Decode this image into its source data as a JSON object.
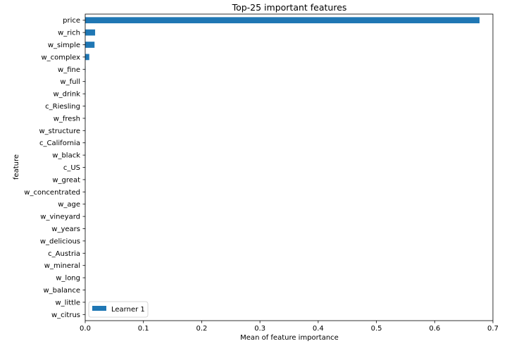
{
  "chart_data": {
    "type": "bar",
    "orientation": "horizontal",
    "title": "Top-25 important features",
    "xlabel": "Mean of feature importance",
    "ylabel": "feature",
    "categories": [
      "price",
      "w_rich",
      "w_simple",
      "w_complex",
      "w_fine",
      "w_full",
      "w_drink",
      "c_Riesling",
      "w_fresh",
      "w_structure",
      "c_California",
      "w_black",
      "c_US",
      "w_great",
      "w_concentrated",
      "w_age",
      "w_vineyard",
      "w_years",
      "w_delicious",
      "c_Austria",
      "w_mineral",
      "w_long",
      "w_balance",
      "w_little",
      "w_citrus"
    ],
    "series": [
      {
        "name": "Learner 1",
        "color": "#1f77b4",
        "values": [
          0.677,
          0.017,
          0.016,
          0.007,
          0.0005,
          0.0004,
          0.0004,
          0.0003,
          0.0003,
          0.0003,
          0.0003,
          0.0003,
          0.0002,
          0.0002,
          0.0002,
          0.0002,
          0.0002,
          0.0002,
          0.0002,
          0.0001,
          0.0001,
          0.0001,
          0.0001,
          0.0001,
          0.0001
        ]
      }
    ],
    "xlim": [
      0,
      0.7
    ],
    "xticks": [
      0.0,
      0.1,
      0.2,
      0.3,
      0.4,
      0.5,
      0.6,
      0.7
    ],
    "xtick_labels": [
      "0.0",
      "0.1",
      "0.2",
      "0.3",
      "0.4",
      "0.5",
      "0.6",
      "0.7"
    ],
    "grid": false,
    "legend_position": "lower-left"
  }
}
